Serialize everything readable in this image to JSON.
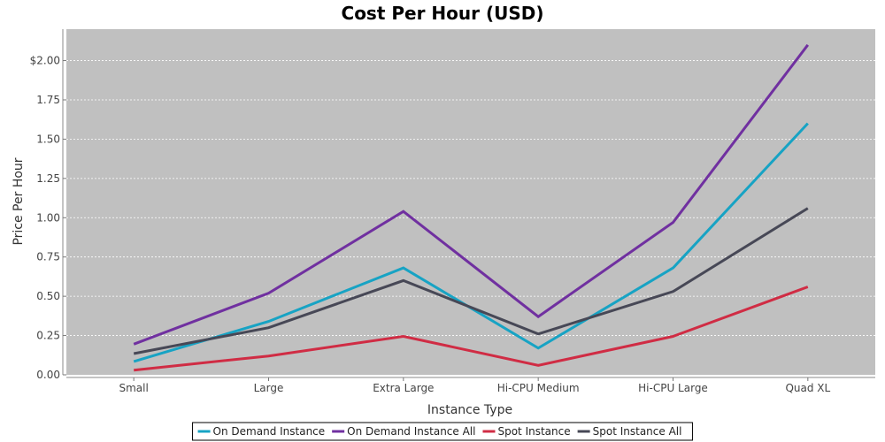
{
  "chart_data": {
    "type": "line",
    "title": "Cost Per Hour (USD)",
    "xlabel": "Instance Type",
    "ylabel": "Price Per Hour",
    "categories": [
      "Small",
      "Large",
      "Extra Large",
      "Hi-CPU Medium",
      "Hi-CPU Large",
      "Quad XL"
    ],
    "ylim": [
      0,
      2.2
    ],
    "yticks": [
      0,
      0.25,
      0.5,
      0.75,
      1.0,
      1.25,
      1.5,
      1.75,
      2.0
    ],
    "ytick_labels": [
      "0.00",
      "0.25",
      "0.50",
      "0.75",
      "1.00",
      "1.25",
      "1.50",
      "1.75",
      "$2.00"
    ],
    "grid": true,
    "plot_background": "#c0c0c0",
    "legend_position": "bottom",
    "series": [
      {
        "name": "On Demand Instance",
        "color": "#17a3c4",
        "values": [
          0.085,
          0.34,
          0.68,
          0.17,
          0.68,
          1.6
        ]
      },
      {
        "name": "On Demand Instance All",
        "color": "#7030a0",
        "values": [
          0.195,
          0.52,
          1.04,
          0.37,
          0.97,
          2.1
        ]
      },
      {
        "name": "Spot Instance",
        "color": "#d02c44",
        "values": [
          0.03,
          0.12,
          0.245,
          0.06,
          0.245,
          0.56
        ]
      },
      {
        "name": "Spot Instance All",
        "color": "#474856",
        "values": [
          0.135,
          0.3,
          0.6,
          0.26,
          0.53,
          1.06
        ]
      }
    ]
  }
}
